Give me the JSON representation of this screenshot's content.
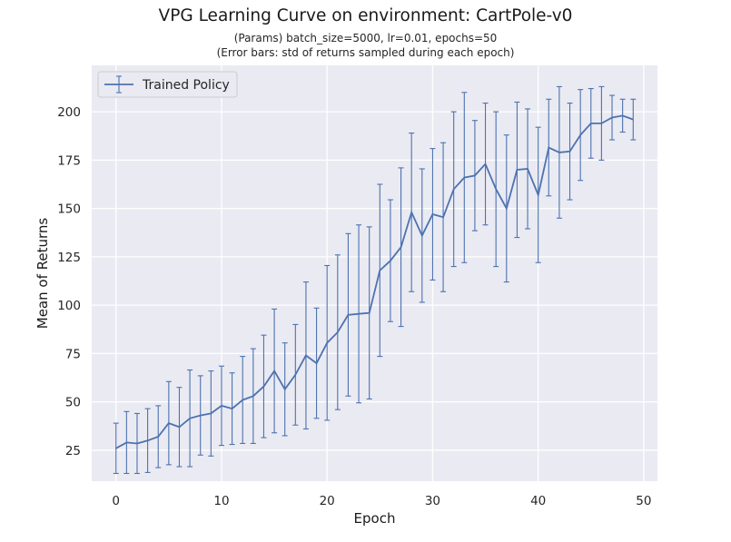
{
  "chart_data": {
    "type": "line",
    "title": "VPG Learning Curve on environment: CartPole-v0",
    "subtitle_lines": [
      "(Params) batch_size=5000, lr=0.01, epochs=50",
      "(Error bars: std of returns sampled during each epoch)"
    ],
    "xlabel": "Epoch",
    "ylabel": "Mean of Returns",
    "xlim": [
      -2.3,
      51.3
    ],
    "ylim": [
      9,
      224
    ],
    "xticks": [
      0,
      10,
      20,
      30,
      40,
      50
    ],
    "yticks": [
      25,
      50,
      75,
      100,
      125,
      150,
      175,
      200
    ],
    "grid": true,
    "legend_position": "top-left",
    "series": [
      {
        "name": "Trained Policy",
        "color": "#4c72b0",
        "x": [
          0,
          1,
          2,
          3,
          4,
          5,
          6,
          7,
          8,
          9,
          10,
          11,
          12,
          13,
          14,
          15,
          16,
          17,
          18,
          19,
          20,
          21,
          22,
          23,
          24,
          25,
          26,
          27,
          28,
          29,
          30,
          31,
          32,
          33,
          34,
          35,
          36,
          37,
          38,
          39,
          40,
          41,
          42,
          43,
          44,
          45,
          46,
          47,
          48,
          49
        ],
        "y": [
          26,
          29,
          28.5,
          30,
          32,
          39,
          37,
          41.5,
          43,
          44,
          48,
          46.5,
          51,
          53,
          58,
          66,
          56.5,
          64,
          74,
          70,
          80.5,
          86,
          95,
          95.5,
          96,
          118,
          123,
          130,
          148,
          136,
          147,
          145.5,
          160,
          166,
          167,
          173,
          160,
          150,
          170,
          170.5,
          157,
          181.5,
          179,
          179.5,
          188,
          194,
          194,
          197,
          198,
          196
        ],
        "error": [
          13,
          16,
          15.5,
          16.5,
          16,
          21.5,
          20.5,
          25,
          20.5,
          22,
          20.5,
          18.5,
          22.5,
          24.5,
          26.5,
          32,
          24,
          26,
          38,
          28.5,
          40,
          40,
          42,
          46,
          44.5,
          44.5,
          31.5,
          41,
          41,
          34.5,
          34,
          38.5,
          40,
          44,
          28.5,
          31.5,
          40,
          38,
          35,
          31,
          35,
          25,
          34,
          25,
          23.5,
          18,
          19,
          11.5,
          8.5,
          10.5
        ]
      }
    ]
  },
  "colors": {
    "plot_background": "#eaeaf2",
    "grid": "#ffffff",
    "series": "#4c72b0"
  }
}
